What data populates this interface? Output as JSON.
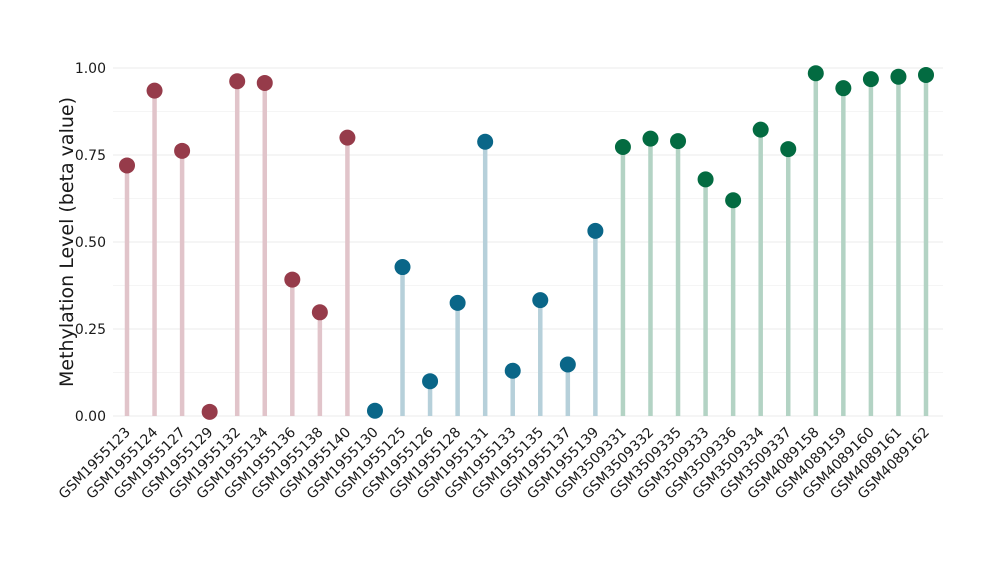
{
  "chart_data": {
    "type": "scatter",
    "style": "lollipop",
    "ylabel": "Methylation Level (beta value)",
    "ylim": [
      0,
      1
    ],
    "yticks": [
      "0.00",
      "0.25",
      "0.50",
      "0.75",
      "1.00"
    ],
    "grid": true,
    "legend": "none",
    "categories": [
      "GSM1955123",
      "GSM1955124",
      "GSM1955127",
      "GSM1955129",
      "GSM1955132",
      "GSM1955134",
      "GSM1955136",
      "GSM1955138",
      "GSM1955140",
      "GSM1955130",
      "GSM1955125",
      "GSM1955126",
      "GSM1955128",
      "GSM1955131",
      "GSM1955133",
      "GSM1955135",
      "GSM1955137",
      "GSM1955139",
      "GSM3509331",
      "GSM3509332",
      "GSM3509335",
      "GSM3509333",
      "GSM3509336",
      "GSM3509334",
      "GSM3509337",
      "GSM4089158",
      "GSM4089159",
      "GSM4089160",
      "GSM4089161",
      "GSM4089162"
    ],
    "groups": [
      {
        "dot_color": "#963B4A",
        "stem_color": "#E1C4CA",
        "categories": [
          "GSM1955123",
          "GSM1955124",
          "GSM1955127",
          "GSM1955129",
          "GSM1955132",
          "GSM1955134",
          "GSM1955136",
          "GSM1955138",
          "GSM1955140"
        ],
        "values": [
          0.72,
          0.935,
          0.762,
          0.012,
          0.962,
          0.957,
          0.392,
          0.298,
          0.8
        ]
      },
      {
        "dot_color": "#0A6688",
        "stem_color": "#B6D0DA",
        "categories": [
          "GSM1955130",
          "GSM1955125",
          "GSM1955126",
          "GSM1955128",
          "GSM1955131",
          "GSM1955133",
          "GSM1955135",
          "GSM1955137",
          "GSM1955139"
        ],
        "values": [
          0.015,
          0.428,
          0.1,
          0.325,
          0.788,
          0.13,
          0.333,
          0.148,
          0.532
        ]
      },
      {
        "dot_color": "#036B41",
        "stem_color": "#B3D3C4",
        "categories": [
          "GSM3509331",
          "GSM3509332",
          "GSM3509335",
          "GSM3509333",
          "GSM3509336",
          "GSM3509334",
          "GSM3509337",
          "GSM4089158",
          "GSM4089159",
          "GSM4089160",
          "GSM4089161",
          "GSM4089162"
        ],
        "values": [
          0.773,
          0.797,
          0.79,
          0.68,
          0.62,
          0.823,
          0.767,
          0.985,
          0.942,
          0.968,
          0.975,
          0.98
        ]
      }
    ]
  }
}
